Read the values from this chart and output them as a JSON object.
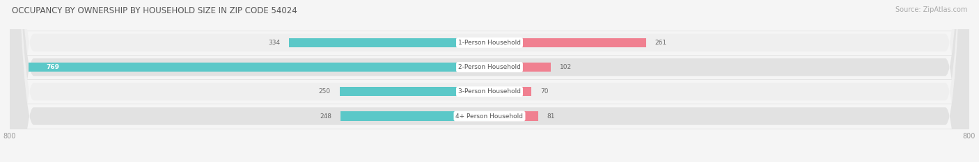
{
  "title": "OCCUPANCY BY OWNERSHIP BY HOUSEHOLD SIZE IN ZIP CODE 54024",
  "source": "Source: ZipAtlas.com",
  "categories": [
    "1-Person Household",
    "2-Person Household",
    "3-Person Household",
    "4+ Person Household"
  ],
  "owner_values": [
    334,
    769,
    250,
    248
  ],
  "renter_values": [
    261,
    102,
    70,
    81
  ],
  "owner_color": "#5bc8c8",
  "renter_color": "#f08090",
  "row_bg_color": "#efefef",
  "row_bg_color2": "#e2e2e2",
  "bg_color": "#f5f5f5",
  "axis_min": -800,
  "axis_max": 800,
  "figsize": [
    14.06,
    2.33
  ],
  "dpi": 100
}
